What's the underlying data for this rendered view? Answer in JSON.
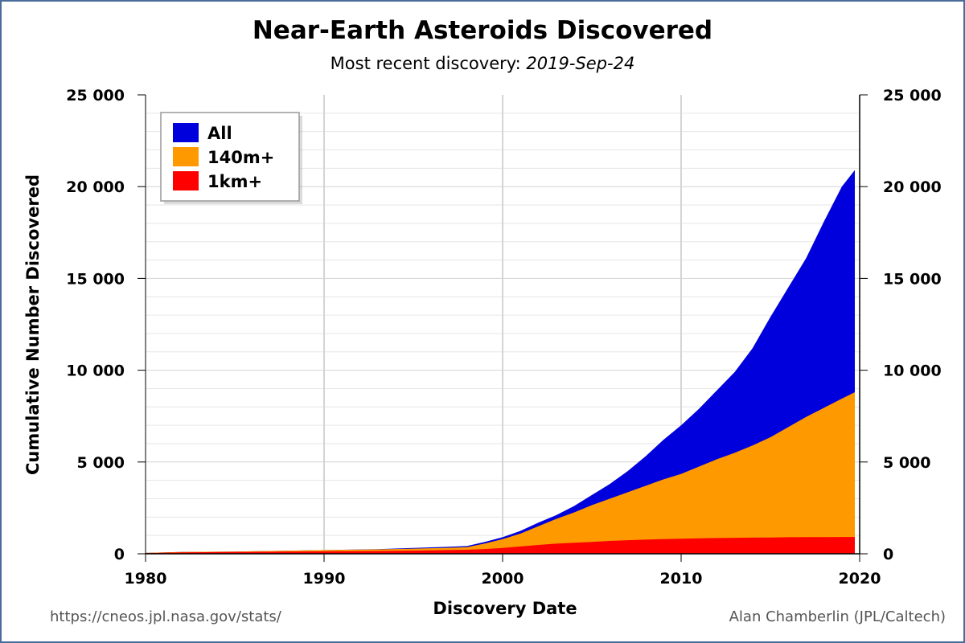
{
  "chart_data": {
    "type": "area",
    "title": "Near-Earth Asteroids Discovered",
    "subtitle_prefix": "Most recent discovery: ",
    "subtitle_date": "2019-Sep-24",
    "xlabel": "Discovery Date",
    "ylabel": "Cumulative Number Discovered",
    "xlim": [
      1980,
      2020
    ],
    "ylim": [
      0,
      25000
    ],
    "x_ticks": [
      "1980",
      "1990",
      "2000",
      "2010",
      "2020"
    ],
    "y_ticks": [
      "0",
      "5 000",
      "10 000",
      "15 000",
      "20 000",
      "25 000"
    ],
    "y_ticks_right": [
      "0",
      "5 000",
      "10 000",
      "15 000",
      "20 000",
      "25 000"
    ],
    "grid": true,
    "stacked": false,
    "legend_position": "top-left",
    "x": [
      1980,
      1982,
      1985,
      1990,
      1993,
      1995,
      1997,
      1998,
      1999,
      2000,
      2001,
      2002,
      2003,
      2004,
      2005,
      2006,
      2007,
      2008,
      2009,
      2010,
      2011,
      2012,
      2013,
      2014,
      2015,
      2016,
      2017,
      2018,
      2019,
      2019.73
    ],
    "series": [
      {
        "name": "All",
        "color": "#0000dd",
        "values": [
          50,
          100,
          120,
          200,
          250,
          320,
          380,
          420,
          650,
          900,
          1250,
          1700,
          2100,
          2600,
          3200,
          3800,
          4500,
          5300,
          6200,
          7000,
          7900,
          8900,
          9900,
          11200,
          12900,
          14500,
          16100,
          18100,
          20000,
          20900
        ]
      },
      {
        "name": "140m+",
        "color": "#ff9900",
        "values": [
          50,
          100,
          120,
          200,
          240,
          280,
          330,
          360,
          560,
          800,
          1100,
          1500,
          1900,
          2250,
          2650,
          3000,
          3350,
          3700,
          4050,
          4350,
          4750,
          5150,
          5500,
          5900,
          6350,
          6900,
          7450,
          7950,
          8450,
          8800
        ]
      },
      {
        "name": "1km+",
        "color": "#ff0000",
        "values": [
          40,
          80,
          100,
          130,
          150,
          170,
          200,
          220,
          260,
          320,
          400,
          480,
          550,
          600,
          650,
          700,
          740,
          770,
          800,
          820,
          840,
          860,
          870,
          880,
          890,
          900,
          905,
          910,
          915,
          915
        ]
      }
    ]
  },
  "credits": {
    "source_url": "https://cneos.jpl.nasa.gov/stats/",
    "author": "Alan Chamberlin (JPL/Caltech)"
  }
}
